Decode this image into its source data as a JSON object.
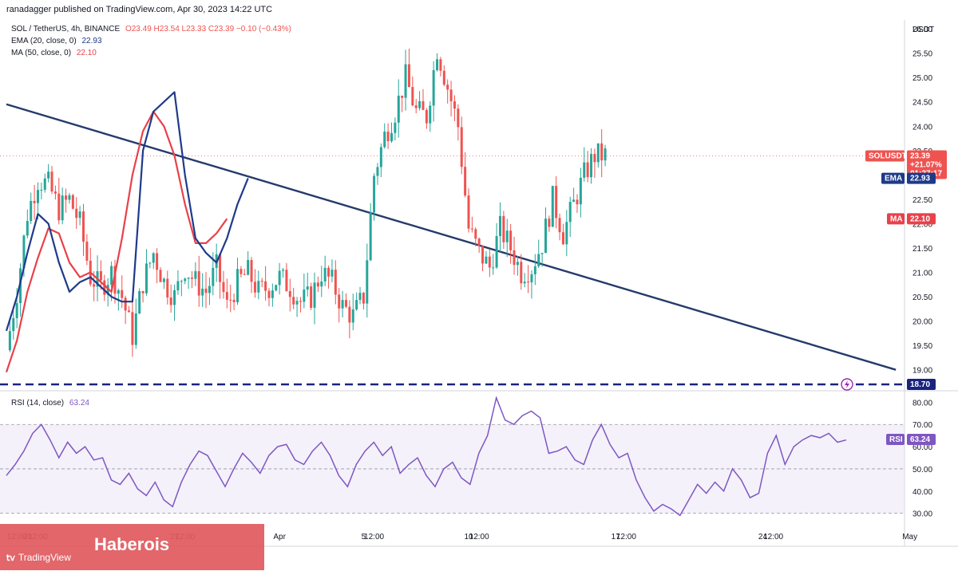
{
  "header": {
    "author": "ranadagger published on TradingView.com, Apr 30, 2023 14:22 UTC"
  },
  "legend": {
    "symbol": "SOL / TetherUS, 4h, BINANCE",
    "ohlc": "O23.49 H23.54 L23.33 C23.39 −0.10 (−0.43%)",
    "ema_label": "EMA (20, close, 0)",
    "ema_value": "22.93",
    "ma_label": "MA (50, close, 0)",
    "ma_value": "22.10",
    "rsi_label": "RSI (14, close)",
    "rsi_value": "63.24"
  },
  "currency": "USDT",
  "colors": {
    "ema": "#1e3a8a",
    "ma": "#e8414a",
    "up": "#26a69a",
    "down": "#ef5350",
    "trendline": "#243b6b",
    "support": "#1a237e",
    "rsi": "#7e57c2",
    "rsi_band": "#ede7f6"
  },
  "price_tags": {
    "symbol_tag": "SOLUSDT",
    "last": "23.39",
    "change": "+21.07%",
    "countdown": "01:37:17",
    "ema_tag": "EMA",
    "ema": "22.93",
    "ma_tag": "MA",
    "ma": "22.10",
    "support": "18.70",
    "rsi_tag": "RSI",
    "rsi": "63.24"
  },
  "watermark": {
    "brand": "TradingView",
    "text": "Haberois"
  },
  "chart_data": [
    {
      "type": "candlestick",
      "title": "SOL / TetherUS, 4h, BINANCE",
      "ylabel": "USDT",
      "ylim": [
        18.7,
        26.1
      ],
      "y_ticks": [
        "19.00",
        "19.50",
        "20.00",
        "20.50",
        "21.00",
        "21.50",
        "22.00",
        "22.50",
        "23.00",
        "23.50",
        "24.00",
        "24.50",
        "25.00",
        "25.50",
        "26.00"
      ],
      "x_ticks": [
        "12:00",
        "20",
        "12:00",
        "27",
        "12:00",
        "Apr",
        "5",
        "12:00",
        "10",
        "12:00",
        "17",
        "12:00",
        "24",
        "12:00",
        "May"
      ],
      "x_dates": [
        "Mar 19 12:00",
        "Mar 20",
        "Mar 20 12:00",
        "Mar 27",
        "Mar 27 12:00",
        "Apr 1",
        "Apr 5",
        "Apr 5 12:00",
        "Apr 10",
        "Apr 10 12:00",
        "Apr 17",
        "Apr 17 12:00",
        "Apr 24",
        "Apr 24 12:00",
        "May 1"
      ],
      "close_path": [
        [
          "Mar 19 00:00",
          19.4
        ],
        [
          "Mar 19 12:00",
          20.6
        ],
        [
          "Mar 20 00:00",
          22.2
        ],
        [
          "Mar 20 12:00",
          22.9
        ],
        [
          "Mar 21 00:00",
          22.8
        ],
        [
          "Mar 21 12:00",
          22.3
        ],
        [
          "Mar 22 00:00",
          22.5
        ],
        [
          "Mar 22 12:00",
          22.0
        ],
        [
          "Mar 23 00:00",
          20.9
        ],
        [
          "Mar 23 12:00",
          20.7
        ],
        [
          "Mar 24 00:00",
          21.0
        ],
        [
          "Mar 24 12:00",
          20.5
        ],
        [
          "Mar 25 00:00",
          19.7
        ],
        [
          "Mar 25 12:00",
          20.8
        ],
        [
          "Mar 26 00:00",
          21.4
        ],
        [
          "Mar 26 12:00",
          20.8
        ],
        [
          "Mar 27 00:00",
          20.5
        ],
        [
          "Mar 27 12:00",
          21.1
        ],
        [
          "Mar 28 00:00",
          20.8
        ],
        [
          "Mar 28 12:00",
          20.6
        ],
        [
          "Mar 29 00:00",
          21.1
        ],
        [
          "Mar 29 12:00",
          20.3
        ],
        [
          "Mar 30 00:00",
          20.8
        ],
        [
          "Mar 30 12:00",
          21.0
        ],
        [
          "Mar 31 00:00",
          20.6
        ],
        [
          "Mar 31 12:00",
          20.7
        ],
        [
          "Apr 1 00:00",
          20.9
        ],
        [
          "Apr 1 12:00",
          20.7
        ],
        [
          "Apr 2 00:00",
          20.4
        ],
        [
          "Apr 2 12:00",
          20.5
        ],
        [
          "Apr 3 00:00",
          21.0
        ],
        [
          "Apr 3 12:00",
          20.8
        ],
        [
          "Apr 4 00:00",
          20.3
        ],
        [
          "Apr 4 12:00",
          20.1
        ],
        [
          "Apr 5 00:00",
          20.5
        ],
        [
          "Apr 5 12:00",
          23.0
        ],
        [
          "Apr 6 00:00",
          23.8
        ],
        [
          "Apr 6 12:00",
          24.3
        ],
        [
          "Apr 7 00:00",
          25.0
        ],
        [
          "Apr 7 12:00",
          24.3
        ],
        [
          "Apr 8 00:00",
          24.2
        ],
        [
          "Apr 8 12:00",
          25.6
        ],
        [
          "Apr 9 00:00",
          24.8
        ],
        [
          "Apr 9 12:00",
          24.0
        ],
        [
          "Apr 10 00:00",
          21.9
        ],
        [
          "Apr 10 12:00",
          21.4
        ],
        [
          "Apr 11 00:00",
          21.1
        ],
        [
          "Apr 11 12:00",
          21.9
        ],
        [
          "Apr 12 00:00",
          21.5
        ],
        [
          "Apr 12 12:00",
          21.0
        ],
        [
          "Apr 13 00:00",
          21.1
        ],
        [
          "Apr 13 12:00",
          21.6
        ],
        [
          "Apr 14 00:00",
          22.5
        ],
        [
          "Apr 14 12:00",
          21.8
        ],
        [
          "Apr 15 00:00",
          22.4
        ],
        [
          "Apr 15 12:00",
          23.0
        ],
        [
          "Apr 16 00:00",
          23.4
        ],
        [
          "Apr 16 12:00",
          23.4
        ]
      ],
      "ema_20": [
        [
          "Mar 19 00:00",
          19.8
        ],
        [
          "Mar 19 12:00",
          20.5
        ],
        [
          "Mar 20 00:00",
          21.4
        ],
        [
          "Mar 20 12:00",
          22.2
        ],
        [
          "Mar 21 00:00",
          22.0
        ],
        [
          "Mar 21 12:00",
          21.2
        ],
        [
          "Mar 22 00:00",
          20.6
        ],
        [
          "Mar 22 12:00",
          20.8
        ],
        [
          "Mar 23 00:00",
          20.9
        ],
        [
          "Mar 23 12:00",
          20.7
        ],
        [
          "Mar 24 00:00",
          20.5
        ],
        [
          "Mar 24 12:00",
          20.4
        ],
        [
          "Mar 25 00:00",
          20.4
        ],
        [
          "Mar 25 12:00",
          23.5
        ],
        [
          "Mar 26 00:00",
          24.3
        ],
        [
          "Mar 26 12:00",
          24.5
        ],
        [
          "Mar 27 00:00",
          24.7
        ],
        [
          "Mar 27 12:00",
          23.0
        ],
        [
          "Mar 28 00:00",
          21.7
        ],
        [
          "Mar 28 12:00",
          21.4
        ],
        [
          "Mar 29 00:00",
          21.2
        ],
        [
          "Mar 29 12:00",
          21.7
        ],
        [
          "Mar 30 00:00",
          22.4
        ],
        [
          "Mar 30 12:00",
          22.93
        ]
      ],
      "ma_50": [
        [
          "Mar 19 00:00",
          18.95
        ],
        [
          "Mar 19 12:00",
          19.6
        ],
        [
          "Mar 20 00:00",
          20.6
        ],
        [
          "Mar 20 12:00",
          21.3
        ],
        [
          "Mar 21 00:00",
          21.9
        ],
        [
          "Mar 21 12:00",
          21.8
        ],
        [
          "Mar 22 00:00",
          21.2
        ],
        [
          "Mar 22 12:00",
          20.9
        ],
        [
          "Mar 23 00:00",
          21.0
        ],
        [
          "Mar 23 12:00",
          20.8
        ],
        [
          "Mar 24 00:00",
          20.6
        ],
        [
          "Mar 24 12:00",
          21.7
        ],
        [
          "Mar 25 00:00",
          23.0
        ],
        [
          "Mar 25 12:00",
          23.9
        ],
        [
          "Mar 26 00:00",
          24.3
        ],
        [
          "Mar 26 12:00",
          24.0
        ],
        [
          "Mar 27 00:00",
          23.4
        ],
        [
          "Mar 27 12:00",
          22.4
        ],
        [
          "Mar 28 00:00",
          21.6
        ],
        [
          "Mar 28 12:00",
          21.6
        ],
        [
          "Mar 29 00:00",
          21.8
        ],
        [
          "Mar 29 12:00",
          22.1
        ]
      ],
      "trendline": [
        [
          "Mar 19 00:00",
          24.45
        ],
        [
          "Apr 30 08:00",
          19.0
        ]
      ],
      "support": 18.7
    },
    {
      "type": "line",
      "title": "RSI (14, close)",
      "ylim": [
        27,
        83
      ],
      "y_ticks": [
        "30.00",
        "40.00",
        "50.00",
        "60.00",
        "70.00",
        "80.00"
      ],
      "bands": [
        30,
        50,
        70
      ],
      "values": [
        47,
        52,
        58,
        66,
        70,
        63,
        55,
        62,
        57,
        60,
        54,
        55,
        45,
        43,
        48,
        41,
        38,
        44,
        36,
        33,
        44,
        52,
        58,
        56,
        49,
        42,
        50,
        57,
        53,
        48,
        56,
        60,
        61,
        54,
        52,
        58,
        62,
        56,
        47,
        42,
        52,
        58,
        62,
        56,
        60,
        48,
        52,
        55,
        47,
        42,
        50,
        53,
        46,
        43,
        57,
        65,
        82,
        72,
        70,
        74,
        76,
        73,
        57,
        58,
        60,
        54,
        52,
        63,
        70,
        61,
        55,
        57,
        45,
        37,
        31,
        34,
        32,
        29,
        36,
        43,
        39,
        44,
        40,
        50,
        45,
        37,
        39,
        57,
        65,
        52,
        60,
        63,
        65,
        64,
        66,
        62,
        63
      ]
    }
  ]
}
